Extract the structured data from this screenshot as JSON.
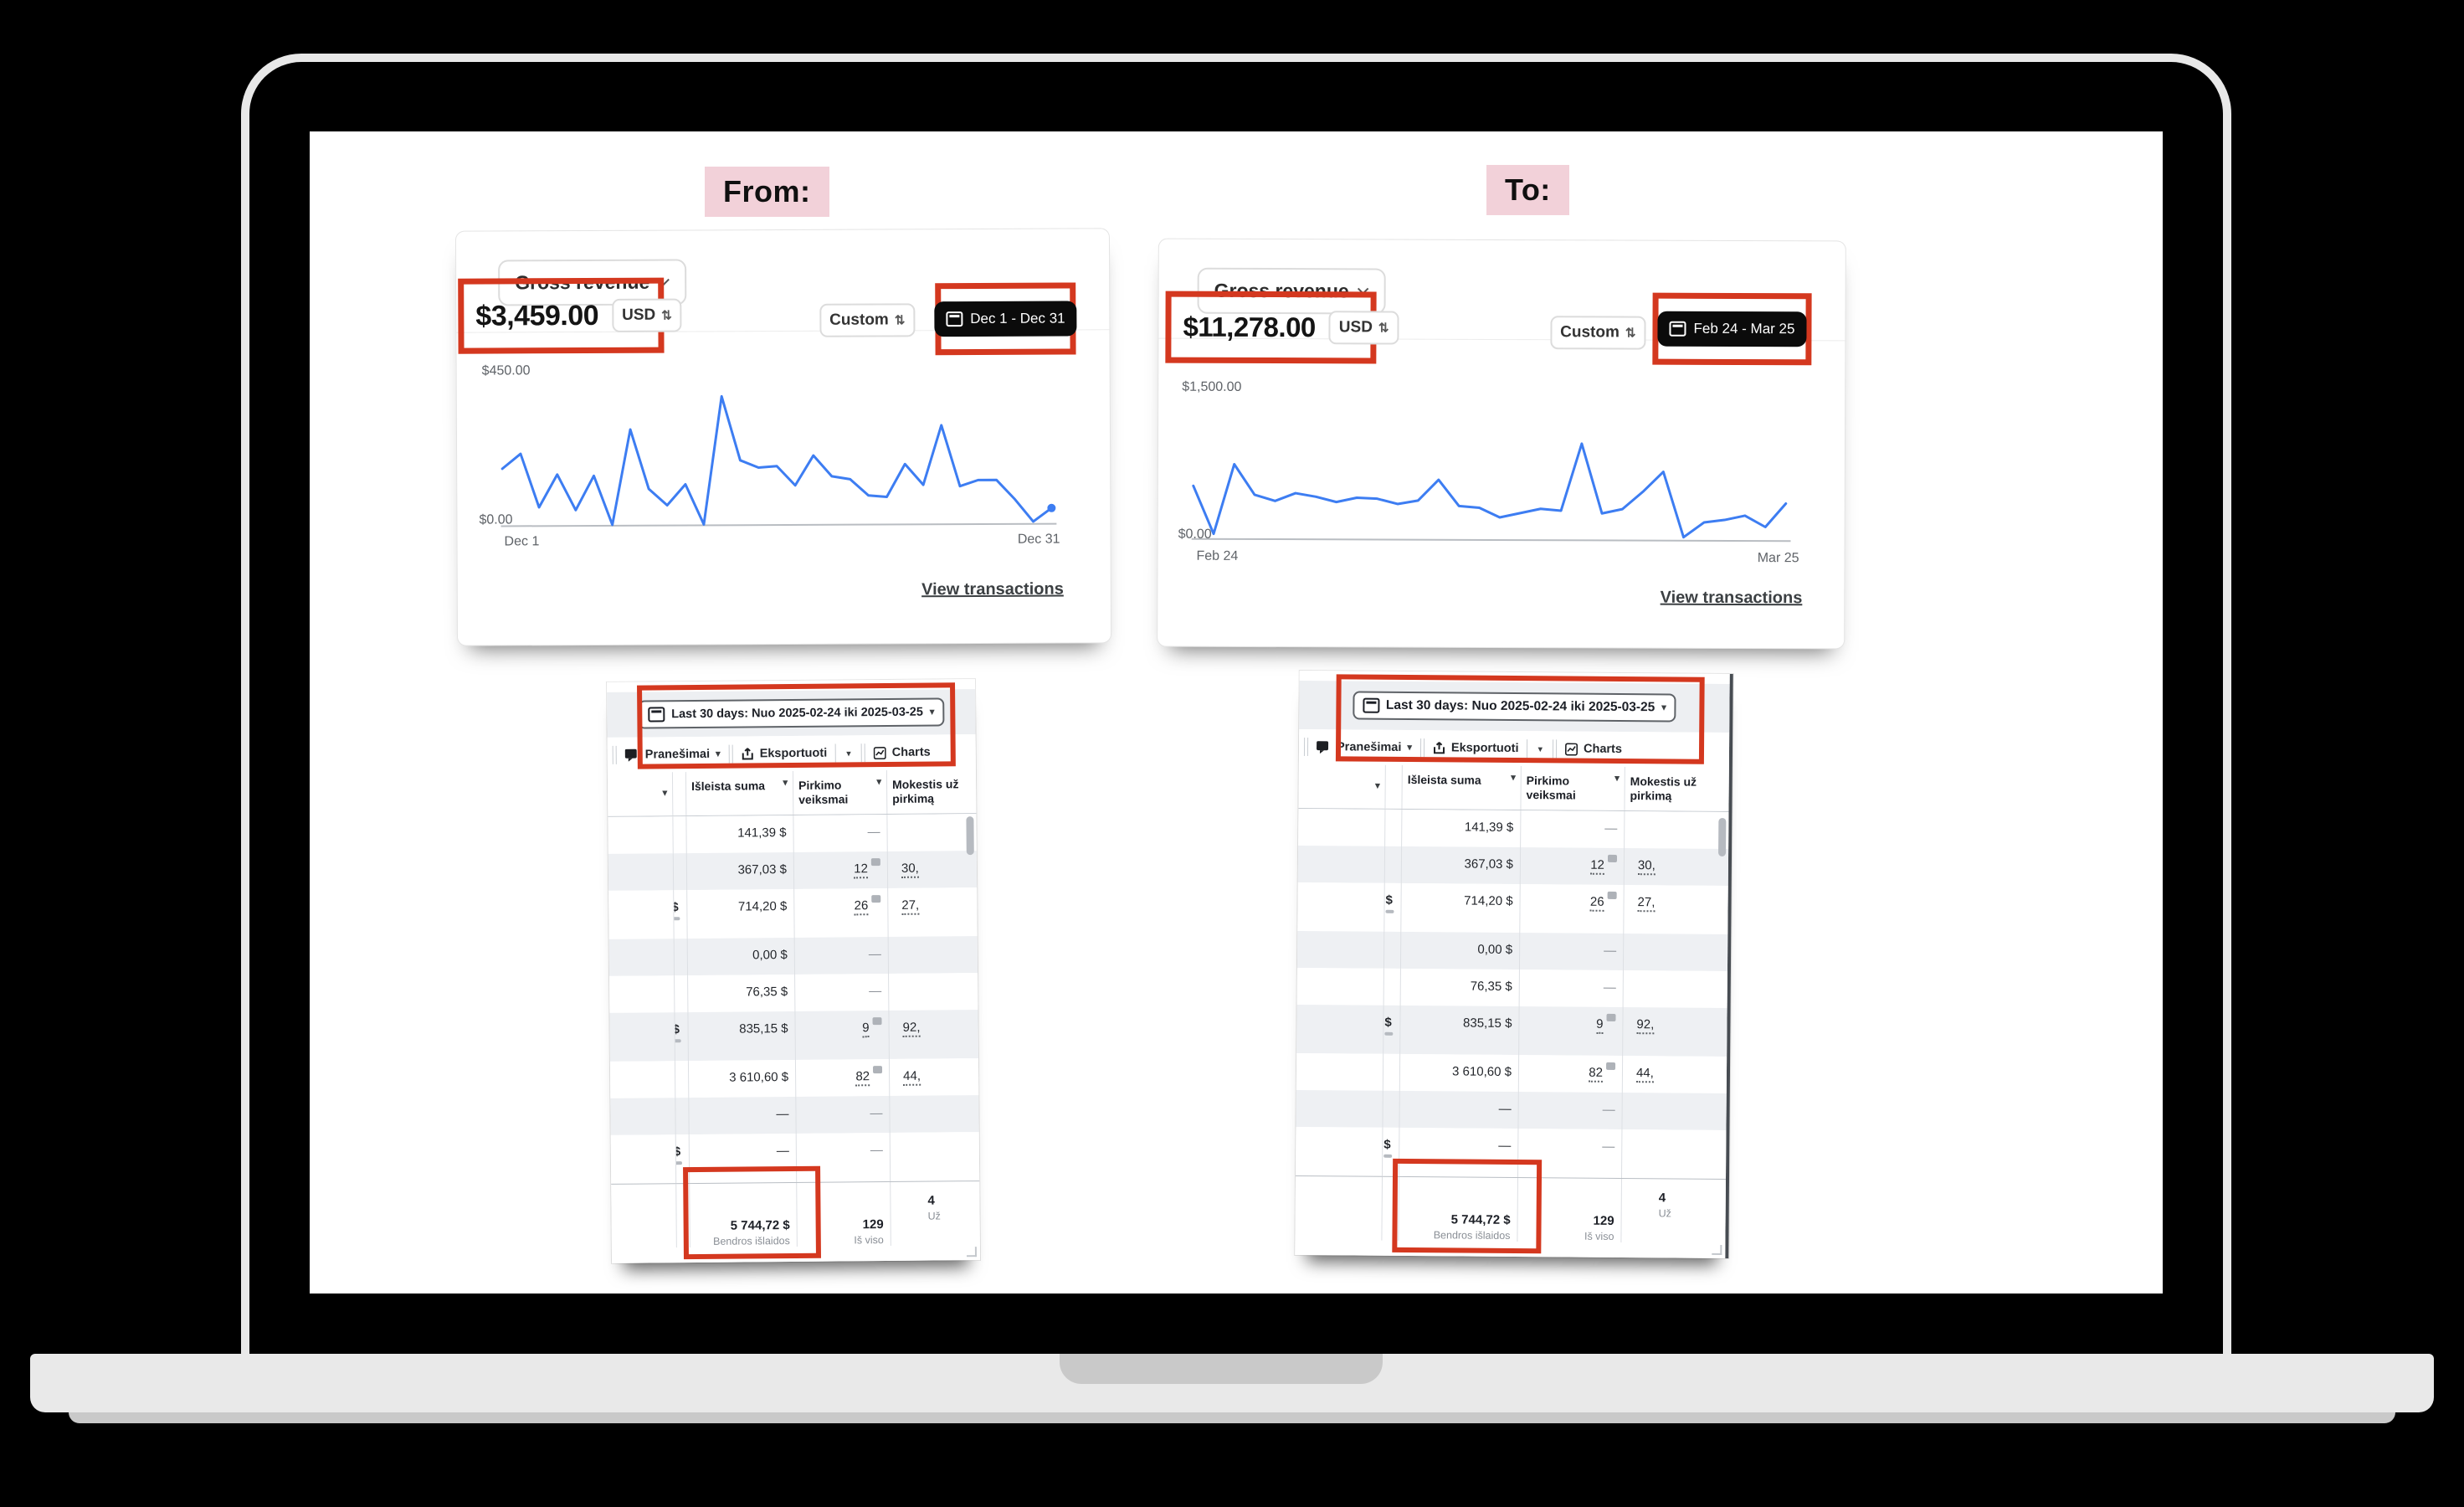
{
  "labels": {
    "from": "From:",
    "to": "To:"
  },
  "colors": {
    "annotation_red": "#d4381f",
    "label_pink": "#f2d1d9",
    "chart_blue": "#3d7df2",
    "date_pill_black": "#0b0b0b",
    "laptop_body_gray": "#e9e9e9"
  },
  "icons": {
    "calendar": "calendar-icon",
    "chevron": "chevron-down-icon",
    "sort": "sort-caret-icon",
    "updown": "updown-arrows-icon",
    "reports": "reports-icon",
    "export": "export-icon",
    "charts": "charts-icon",
    "attribution": "attribution-badge-icon"
  },
  "cards": {
    "from": {
      "metric": "Gross revenue",
      "amount": "$3,459.00",
      "currency": "USD",
      "range_type": "Custom",
      "date_range": "Dec 1 - Dec 31",
      "y_max": "$450.00",
      "y_min": "$0.00",
      "x_start": "Dec 1",
      "x_end": "Dec 31",
      "link": "View transactions"
    },
    "to": {
      "metric": "Gross revenue",
      "amount": "$11,278.00",
      "currency": "USD",
      "range_type": "Custom",
      "date_range": "Feb 24 - Mar 25",
      "y_max": "$1,500.00",
      "y_min": "$0.00",
      "x_start": "Feb 24",
      "x_end": "Mar 25",
      "link": "View transactions"
    }
  },
  "chart_data": [
    {
      "type": "line",
      "title": "Gross revenue (From)",
      "legend": "none",
      "grid": false,
      "xlabel": "",
      "ylabel": "USD",
      "x_range": [
        "Dec 1",
        "Dec 31"
      ],
      "ylim": [
        0,
        450
      ],
      "values": [
        190,
        240,
        60,
        170,
        50,
        165,
        0,
        320,
        120,
        65,
        135,
        0,
        430,
        215,
        190,
        195,
        130,
        230,
        160,
        150,
        95,
        90,
        200,
        130,
        330,
        125,
        145,
        145,
        80,
        5,
        50
      ]
    },
    {
      "type": "line",
      "title": "Gross revenue (To)",
      "legend": "none",
      "grid": false,
      "xlabel": "",
      "ylabel": "USD",
      "x_range": [
        "Feb 24",
        "Mar 25"
      ],
      "ylim": [
        0,
        1500
      ],
      "values": [
        600,
        50,
        850,
        500,
        430,
        520,
        480,
        420,
        470,
        460,
        400,
        440,
        680,
        380,
        360,
        250,
        300,
        350,
        330,
        1100,
        300,
        350,
        550,
        780,
        30,
        200,
        230,
        280,
        150,
        420
      ]
    }
  ],
  "ads_table": {
    "date_filter": "Last 30 days: Nuo 2025-02-24 iki 2025-03-25",
    "toolbar": {
      "reports": "Pranešimai",
      "export": "Eksportuoti",
      "charts": "Charts"
    },
    "columns": {
      "spent": "Išleista suma",
      "purchases": "Pirkimo veiksmai",
      "tax": "Mokestis už pirkimą"
    },
    "rows": [
      {
        "edge": "",
        "spent": "141,39 $",
        "purchases": "—",
        "badge": false,
        "tax": ""
      },
      {
        "edge": "",
        "spent": "367,03 $",
        "purchases": "12",
        "badge": true,
        "tax": "30,"
      },
      {
        "edge": "$",
        "spent": "714,20 $",
        "purchases": "26",
        "badge": true,
        "tax": "27,"
      },
      {
        "edge": "",
        "spent": "0,00 $",
        "purchases": "—",
        "badge": false,
        "tax": ""
      },
      {
        "edge": "",
        "spent": "76,35 $",
        "purchases": "—",
        "badge": false,
        "tax": ""
      },
      {
        "edge": "$",
        "spent": "835,15 $",
        "purchases": "9",
        "badge": true,
        "tax": "92,"
      },
      {
        "edge": "",
        "spent": "3 610,60 $",
        "purchases": "82",
        "badge": true,
        "tax": "44,"
      },
      {
        "edge": "",
        "spent": "—",
        "purchases": "—",
        "badge": false,
        "tax": ""
      },
      {
        "edge": "$",
        "spent": "—",
        "purchases": "—",
        "badge": false,
        "tax": ""
      }
    ],
    "total": {
      "spent": "5 744,72 $",
      "spent_label": "Bendros išlaidos",
      "purchases": "129",
      "purchases_label": "Iš viso",
      "tax": "4",
      "tax_label": "Už"
    }
  }
}
